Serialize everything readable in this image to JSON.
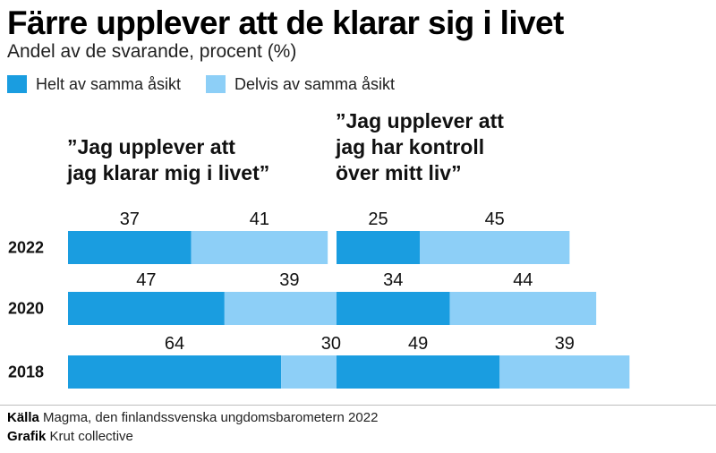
{
  "title": "Färre upplever att de klarar sig i livet",
  "subtitle": "Andel av de svarande, procent (%)",
  "colors": {
    "helt": "#1a9de0",
    "delvis": "#8dcff7"
  },
  "legend": [
    {
      "label": "Helt av samma åsikt",
      "color": "#1a9de0"
    },
    {
      "label": "Delvis av samma åsikt",
      "color": "#8dcff7"
    }
  ],
  "chart_data": [
    {
      "type": "bar",
      "orientation": "horizontal",
      "stacked": true,
      "title_lines": [
        "”Jag upplever att",
        "jag klarar mig i livet”"
      ],
      "categories": [
        "2022",
        "2020",
        "2018"
      ],
      "series": [
        {
          "name": "Helt av samma åsikt",
          "values": [
            37,
            47,
            64
          ]
        },
        {
          "name": "Delvis av samma åsikt",
          "values": [
            41,
            39,
            30
          ]
        }
      ],
      "xlim": [
        0,
        100
      ],
      "grid": false
    },
    {
      "type": "bar",
      "orientation": "horizontal",
      "stacked": true,
      "title_lines": [
        "”Jag upplever att",
        "jag har kontroll",
        "över mitt liv”"
      ],
      "categories": [
        "2022",
        "2020",
        "2018"
      ],
      "series": [
        {
          "name": "Helt av samma åsikt",
          "values": [
            25,
            34,
            49
          ]
        },
        {
          "name": "Delvis av samma åsikt",
          "values": [
            45,
            44,
            39
          ]
        }
      ],
      "xlim": [
        0,
        100
      ],
      "grid": false
    }
  ],
  "footer": {
    "source_label": "Källa",
    "source_text": "Magma, den finlandssvenska ungdomsbarometern 2022",
    "graphic_label": "Grafik",
    "graphic_text": "Krut collective"
  }
}
